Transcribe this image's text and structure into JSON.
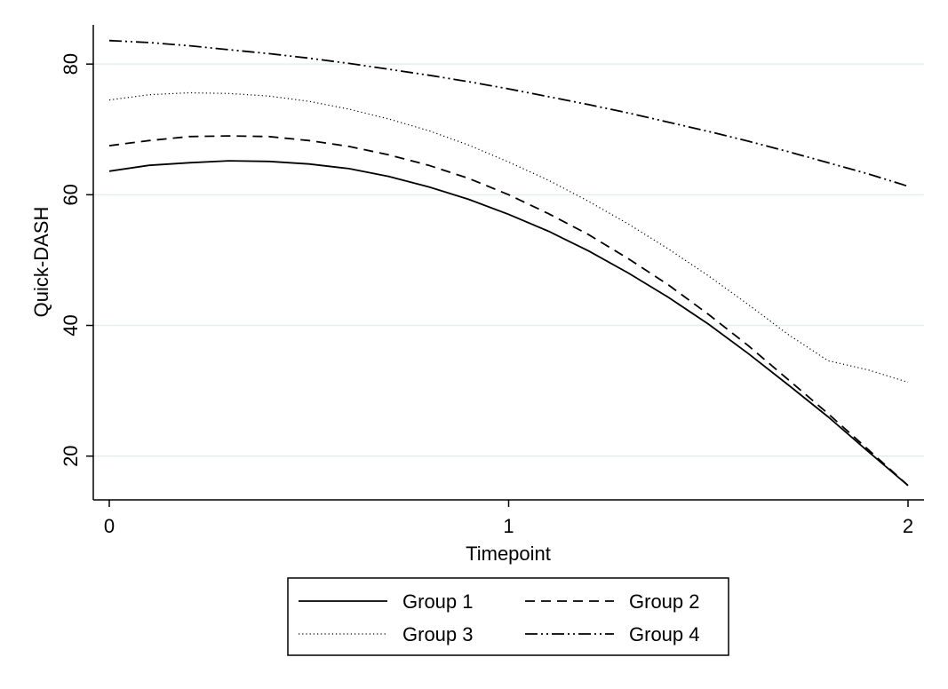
{
  "chart_data": {
    "type": "line",
    "xlabel": "Timepoint",
    "ylabel": "Quick-DASH",
    "x_ticks": [
      "0",
      "1",
      "2"
    ],
    "y_ticks": [
      "20",
      "40",
      "60",
      "80"
    ],
    "xlim": [
      -0.04,
      2.04
    ],
    "ylim": [
      13.3,
      86
    ],
    "grid": true,
    "legend_placement": "bottom",
    "series": [
      {
        "name": "Group 1",
        "style": "solid",
        "color": "#000000",
        "x": [
          0,
          0.1,
          0.2,
          0.3,
          0.4,
          0.5,
          0.6,
          0.7,
          0.8,
          0.9,
          1.0,
          1.1,
          1.2,
          1.3,
          1.4,
          1.5,
          1.6,
          1.7,
          1.8,
          1.9,
          2.0
        ],
        "y": [
          63.6,
          64.5,
          64.9,
          65.2,
          65.1,
          64.7,
          64.0,
          62.8,
          61.2,
          59.3,
          57.0,
          54.4,
          51.4,
          48.0,
          44.3,
          40.2,
          35.7,
          30.9,
          26.0,
          20.7,
          15.5
        ]
      },
      {
        "name": "Group 2",
        "style": "dashed",
        "color": "#000000",
        "x": [
          0,
          0.1,
          0.2,
          0.3,
          0.4,
          0.5,
          0.6,
          0.7,
          0.8,
          0.9,
          1.0,
          1.1,
          1.2,
          1.3,
          1.4,
          1.5,
          1.6,
          1.7,
          1.8,
          1.9,
          2.0
        ],
        "y": [
          67.5,
          68.3,
          68.9,
          69.0,
          68.9,
          68.3,
          67.4,
          66.1,
          64.5,
          62.5,
          60.0,
          57.1,
          53.9,
          50.2,
          46.2,
          41.7,
          36.9,
          31.7,
          26.5,
          21.0,
          15.5
        ]
      },
      {
        "name": "Group 3",
        "style": "dotted",
        "color": "#000000",
        "x": [
          0,
          0.1,
          0.2,
          0.3,
          0.4,
          0.5,
          0.6,
          0.7,
          0.8,
          0.9,
          1.0,
          1.1,
          1.2,
          1.3,
          1.4,
          1.5,
          1.6,
          1.7,
          1.8,
          1.9,
          2.0
        ],
        "y": [
          74.5,
          75.3,
          75.6,
          75.5,
          75.1,
          74.3,
          73.1,
          71.6,
          69.8,
          67.6,
          65.0,
          62.2,
          59.0,
          55.5,
          51.7,
          47.6,
          43.2,
          38.6,
          34.6,
          33.2,
          31.3
        ]
      },
      {
        "name": "Group 4",
        "style": "dash-dot-dot",
        "color": "#000000",
        "x": [
          0,
          0.1,
          0.2,
          0.3,
          0.4,
          0.5,
          0.6,
          0.7,
          0.8,
          0.9,
          1.0,
          1.1,
          1.2,
          1.3,
          1.4,
          1.5,
          1.6,
          1.7,
          1.8,
          1.9,
          2.0
        ],
        "y": [
          83.6,
          83.3,
          82.8,
          82.2,
          81.6,
          80.9,
          80.1,
          79.2,
          78.3,
          77.3,
          76.2,
          75.0,
          73.8,
          72.5,
          71.1,
          69.7,
          68.2,
          66.6,
          64.9,
          63.2,
          61.3
        ]
      }
    ]
  }
}
